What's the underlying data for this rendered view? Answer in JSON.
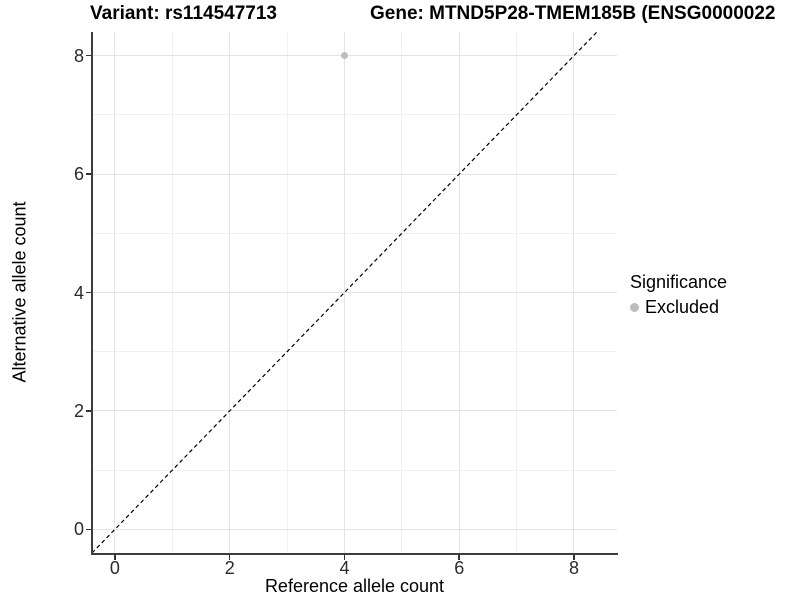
{
  "chart_data": {
    "type": "scatter",
    "title_variant": "Variant: rs114547713",
    "title_gene": "Gene: MTND5P28-TMEM185B (ENSG0000022",
    "xlabel": "Reference allele count",
    "ylabel": "Alternative allele count",
    "xlim": [
      -0.4,
      8.75
    ],
    "ylim": [
      -0.4,
      8.4
    ],
    "x_major_ticks": [
      0,
      2,
      4,
      6,
      8
    ],
    "y_major_ticks": [
      0,
      2,
      4,
      6,
      8
    ],
    "x_minor_gridlines": [
      1,
      3,
      5,
      7
    ],
    "y_minor_gridlines": [
      1,
      3,
      5,
      7
    ],
    "grid": "major+minor",
    "reference_line": {
      "slope": 1,
      "intercept": 0,
      "style": "dashed",
      "color": "#000000"
    },
    "series": [
      {
        "name": "Excluded",
        "color": "#bdbdbd",
        "points": [
          {
            "x": 4,
            "y": 8
          }
        ]
      }
    ],
    "legend": {
      "position": "right",
      "title": "Significance",
      "items": [
        {
          "label": "Excluded",
          "color": "#bdbdbd"
        }
      ]
    }
  },
  "colors": {
    "background": "#ffffff",
    "axis_line": "#3d3d3d",
    "tick_mark": "#333333",
    "tick_label": "#2b2b2b",
    "grid_major": "#e4e4e4",
    "grid_minor": "#f0f0f0",
    "title": "#000000"
  }
}
